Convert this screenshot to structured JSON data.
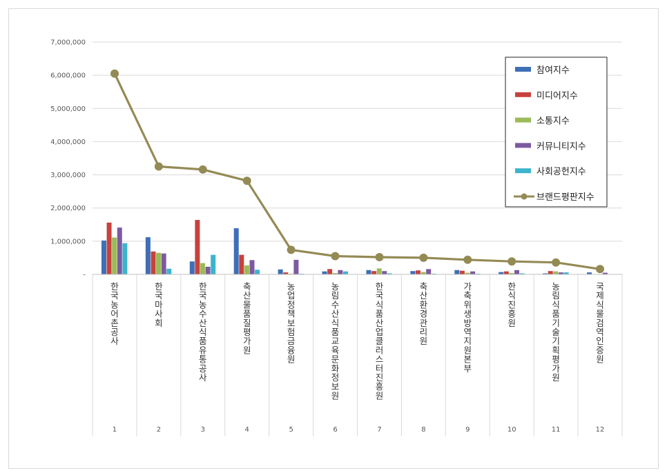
{
  "chart_data": {
    "type": "bar",
    "title": "",
    "xlabel": "",
    "ylabel": "",
    "ylim": [
      0,
      7000000
    ],
    "yticks": [
      "-",
      "1,000,000",
      "2,000,000",
      "3,000,000",
      "4,000,000",
      "5,000,000",
      "6,000,000",
      "7,000,000"
    ],
    "categories": [
      "한국농어촌공사",
      "한국마사회",
      "한국농수산식품유통공사",
      "축산물품질평가원",
      "농업정책보험금융원",
      "농림수산식품교육문화정보원",
      "한국식품산업클러스터진흥원",
      "축산환경관리원",
      "가축위생방역지원본부",
      "한식진흥원",
      "농림식품기술기획평가원",
      "국제식물검역인증원"
    ],
    "ranks": [
      "1",
      "2",
      "3",
      "4",
      "5",
      "6",
      "7",
      "8",
      "9",
      "10",
      "11",
      "12"
    ],
    "legend_position": "top-right",
    "gridlines": true,
    "series": [
      {
        "name": "참여지수",
        "type": "bar",
        "color": "#3f6fb6",
        "values": [
          1020000,
          1120000,
          390000,
          1390000,
          150000,
          90000,
          130000,
          100000,
          130000,
          70000,
          30000,
          60000
        ]
      },
      {
        "name": "미디어지수",
        "type": "bar",
        "color": "#c8413c",
        "values": [
          1560000,
          690000,
          1640000,
          590000,
          60000,
          160000,
          100000,
          120000,
          110000,
          90000,
          100000,
          10000
        ]
      },
      {
        "name": "소통지수",
        "type": "bar",
        "color": "#9bbb59",
        "values": [
          1110000,
          650000,
          340000,
          270000,
          20000,
          40000,
          180000,
          70000,
          50000,
          40000,
          90000,
          10000
        ]
      },
      {
        "name": "커뮤니티지수",
        "type": "bar",
        "color": "#7d5aa0",
        "values": [
          1410000,
          630000,
          230000,
          430000,
          440000,
          130000,
          100000,
          160000,
          90000,
          130000,
          60000,
          50000
        ]
      },
      {
        "name": "사회공헌지수",
        "type": "bar",
        "color": "#3cb4cc",
        "values": [
          940000,
          170000,
          590000,
          140000,
          20000,
          90000,
          30000,
          20000,
          20000,
          30000,
          60000,
          10000
        ]
      },
      {
        "name": "브랜드평판지수",
        "type": "line",
        "color": "#948a54",
        "values": [
          6050000,
          3250000,
          3160000,
          2820000,
          740000,
          550000,
          520000,
          500000,
          440000,
          390000,
          360000,
          160000
        ]
      }
    ]
  }
}
